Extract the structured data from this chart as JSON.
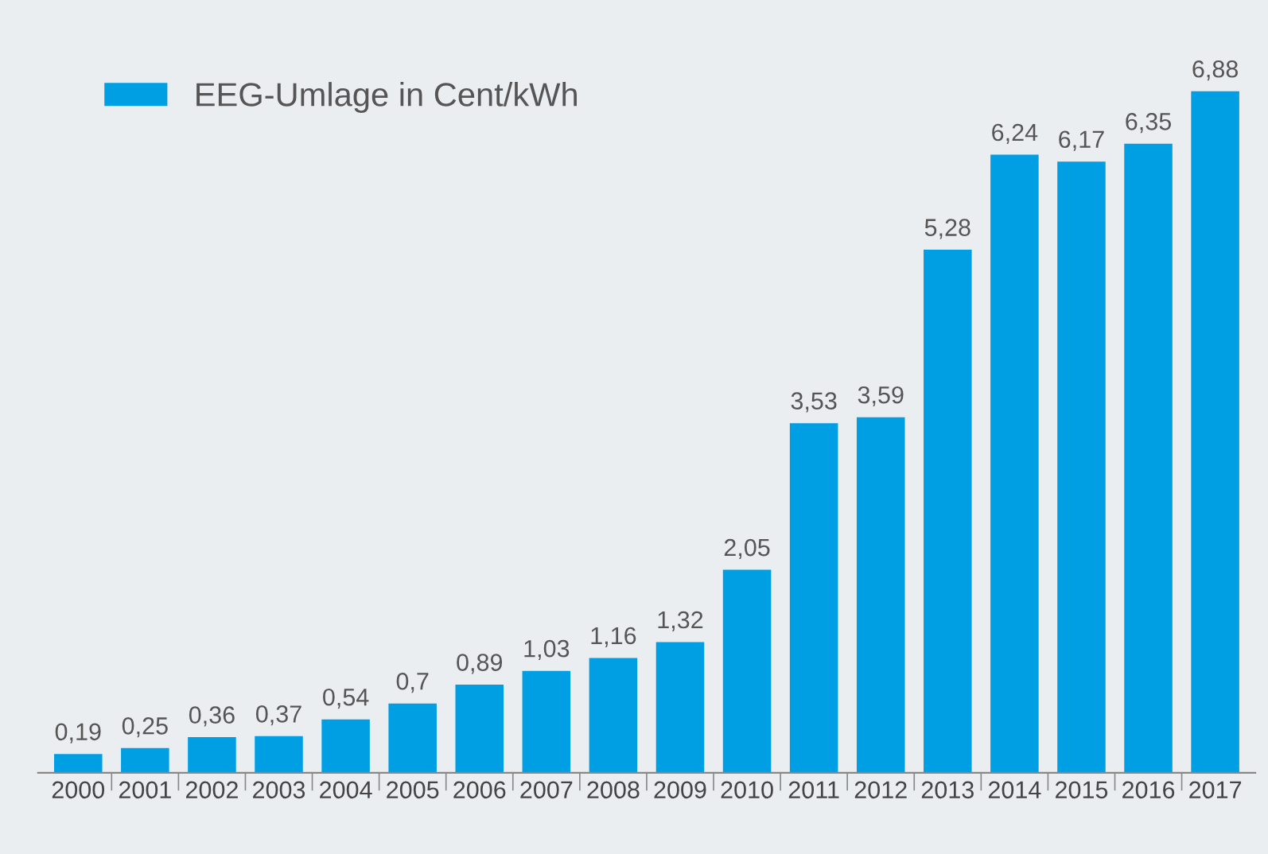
{
  "chart_data": {
    "type": "bar",
    "categories": [
      "2000",
      "2001",
      "2002",
      "2003",
      "2004",
      "2005",
      "2006",
      "2007",
      "2008",
      "2009",
      "2010",
      "2011",
      "2012",
      "2013",
      "2014",
      "2015",
      "2016",
      "2017"
    ],
    "series": [
      {
        "name": "EEG-Umlage in Cent/kWh",
        "color": "#009fe3",
        "values": [
          0.19,
          0.25,
          0.36,
          0.37,
          0.54,
          0.7,
          0.89,
          1.03,
          1.16,
          1.32,
          2.05,
          3.53,
          3.59,
          5.28,
          6.24,
          6.17,
          6.35,
          6.88
        ],
        "value_labels": [
          "0,19",
          "0,25",
          "0,36",
          "0,37",
          "0,54",
          "0,7",
          "0,89",
          "1,03",
          "1,16",
          "1,32",
          "2,05",
          "3,53",
          "3,59",
          "5,28",
          "6,24",
          "6,17",
          "6,35",
          "6,88"
        ]
      }
    ],
    "legend": "top left",
    "grid": false,
    "tick_labels": "x"
  }
}
